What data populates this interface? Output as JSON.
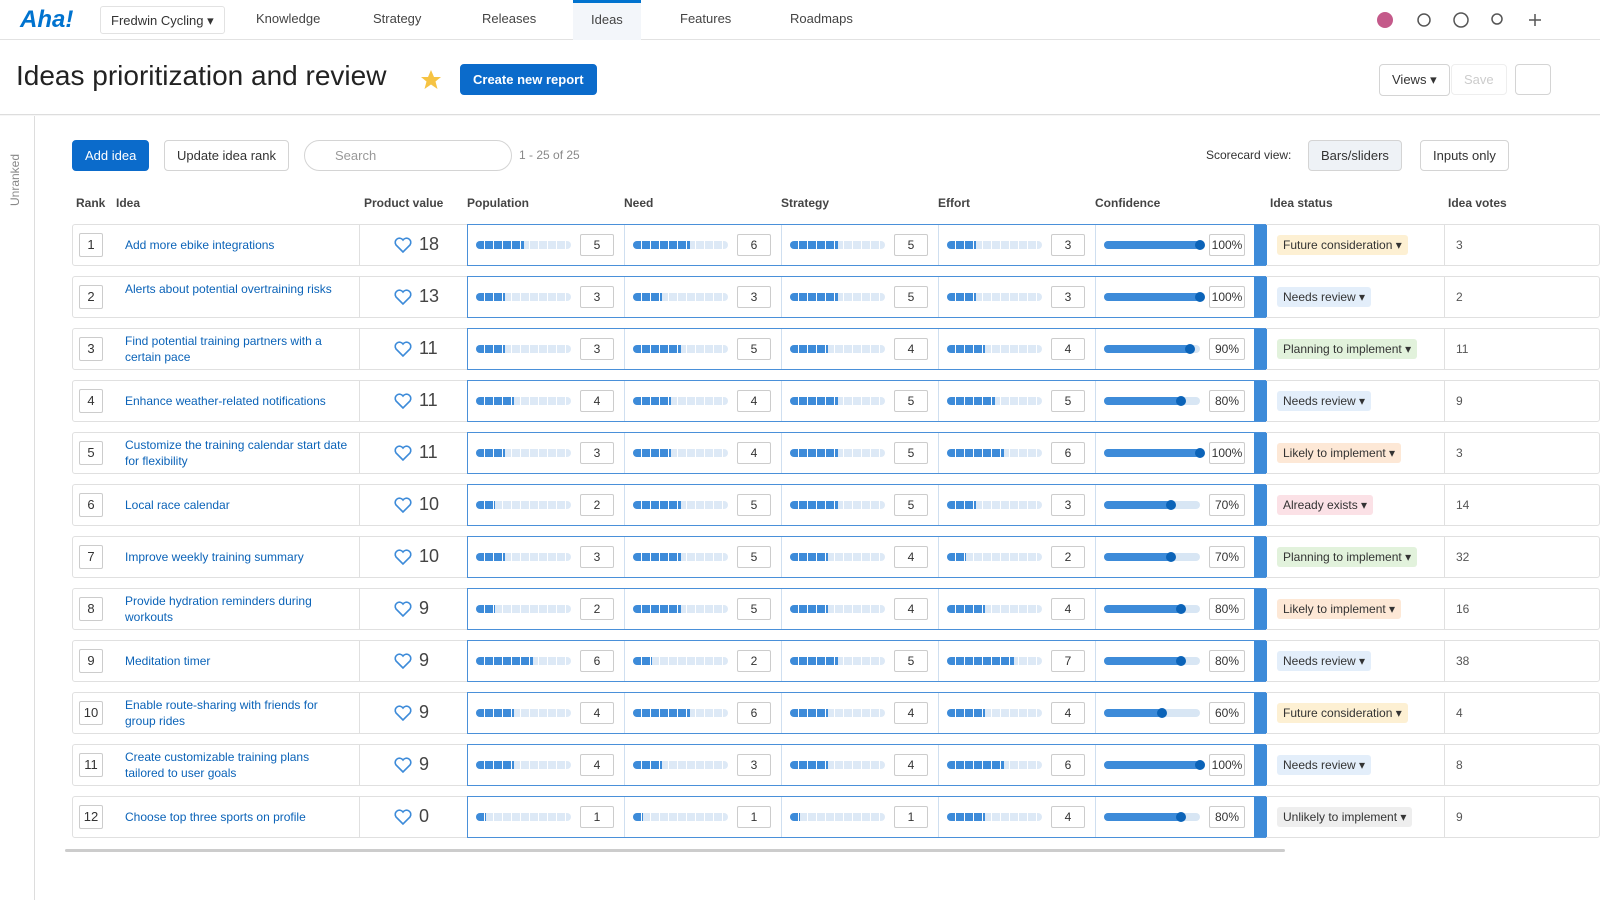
{
  "nav": {
    "logo": "Aha!",
    "workspace": "Fredwin Cycling",
    "tabs": [
      "Knowledge",
      "Strategy",
      "Releases",
      "Ideas",
      "Features",
      "Roadmaps"
    ],
    "active_tab": 3
  },
  "header": {
    "title": "Ideas prioritization and review",
    "create_button": "Create new report",
    "views": "Views",
    "save": "Save"
  },
  "sidebar": {
    "label": "Unranked"
  },
  "toolbar": {
    "add_idea": "Add idea",
    "update_rank": "Update idea rank",
    "search_placeholder": "Search",
    "count": "1 - 25 of 25",
    "scorecard_label": "Scorecard view:",
    "bars_sliders": "Bars/sliders",
    "inputs_only": "Inputs only"
  },
  "table": {
    "columns": [
      "Rank",
      "Idea",
      "Product value",
      "Population",
      "Need",
      "Strategy",
      "Effort",
      "Confidence",
      "Idea status",
      "Idea votes"
    ],
    "score_range": [
      0,
      10
    ],
    "confidence_range": [
      0,
      100
    ],
    "rows": [
      {
        "rank": 1,
        "idea": "Add more ebike integrations",
        "value": 18,
        "population": 5,
        "need": 6,
        "strategy": 5,
        "effort": 3,
        "confidence": {
          "value": 100,
          "label": "100%"
        },
        "status": "Future consideration",
        "status_color": "#fdf0d3",
        "votes": 3
      },
      {
        "rank": 2,
        "idea": "Alerts about potential overtraining risks",
        "value": 13,
        "population": 3,
        "need": 3,
        "strategy": 5,
        "effort": 3,
        "confidence": {
          "value": 100,
          "label": "100%"
        },
        "status": "Needs review",
        "status_color": "#e3eefa",
        "votes": 2
      },
      {
        "rank": 3,
        "idea": "Find potential training partners with a certain pace",
        "value": 11,
        "population": 3,
        "need": 5,
        "strategy": 4,
        "effort": 4,
        "confidence": {
          "value": 90,
          "label": "90%"
        },
        "status": "Planning to implement",
        "status_color": "#e2f2dc",
        "votes": 11
      },
      {
        "rank": 4,
        "idea": "Enhance weather-related notifications",
        "value": 11,
        "population": 4,
        "need": 4,
        "strategy": 5,
        "effort": 5,
        "confidence": {
          "value": 80,
          "label": "80%"
        },
        "status": "Needs review",
        "status_color": "#e3eefa",
        "votes": 9
      },
      {
        "rank": 5,
        "idea": "Customize the training calendar start date for flexibility",
        "value": 11,
        "population": 3,
        "need": 4,
        "strategy": 5,
        "effort": 6,
        "confidence": {
          "value": 100,
          "label": "100%"
        },
        "status": "Likely to implement",
        "status_color": "#fde8d6",
        "votes": 3
      },
      {
        "rank": 6,
        "idea": "Local race calendar",
        "value": 10,
        "population": 2,
        "need": 5,
        "strategy": 5,
        "effort": 3,
        "confidence": {
          "value": 70,
          "label": "70%"
        },
        "status": "Already exists",
        "status_color": "#fbe1e6",
        "votes": 14
      },
      {
        "rank": 7,
        "idea": "Improve weekly training summary",
        "value": 10,
        "population": 3,
        "need": 5,
        "strategy": 4,
        "effort": 2,
        "confidence": {
          "value": 70,
          "label": "70%"
        },
        "status": "Planning to implement",
        "status_color": "#e2f2dc",
        "votes": 32
      },
      {
        "rank": 8,
        "idea": "Provide hydration reminders during workouts",
        "value": 9,
        "population": 2,
        "need": 5,
        "strategy": 4,
        "effort": 4,
        "confidence": {
          "value": 80,
          "label": "80%"
        },
        "status": "Likely to implement",
        "status_color": "#fde8d6",
        "votes": 16
      },
      {
        "rank": 9,
        "idea": "Meditation timer",
        "value": 9,
        "population": 6,
        "need": 2,
        "strategy": 5,
        "effort": 7,
        "confidence": {
          "value": 80,
          "label": "80%"
        },
        "status": "Needs review",
        "status_color": "#e3eefa",
        "votes": 38
      },
      {
        "rank": 10,
        "idea": "Enable route-sharing with friends for group rides",
        "value": 9,
        "population": 4,
        "need": 6,
        "strategy": 4,
        "effort": 4,
        "confidence": {
          "value": 60,
          "label": "60%"
        },
        "status": "Future consideration",
        "status_color": "#fdf0d3",
        "votes": 4
      },
      {
        "rank": 11,
        "idea": "Create customizable training plans tailored to user goals",
        "value": 9,
        "population": 4,
        "need": 3,
        "strategy": 4,
        "effort": 6,
        "confidence": {
          "value": 100,
          "label": "100%"
        },
        "status": "Needs review",
        "status_color": "#e3eefa",
        "votes": 8
      },
      {
        "rank": 12,
        "idea": "Choose top three sports on profile",
        "value": 0,
        "population": 1,
        "need": 1,
        "strategy": 1,
        "effort": 4,
        "confidence": {
          "value": 80,
          "label": "80%"
        },
        "status": "Unlikely to implement",
        "status_color": "#eeeeee",
        "votes": 9
      }
    ]
  }
}
